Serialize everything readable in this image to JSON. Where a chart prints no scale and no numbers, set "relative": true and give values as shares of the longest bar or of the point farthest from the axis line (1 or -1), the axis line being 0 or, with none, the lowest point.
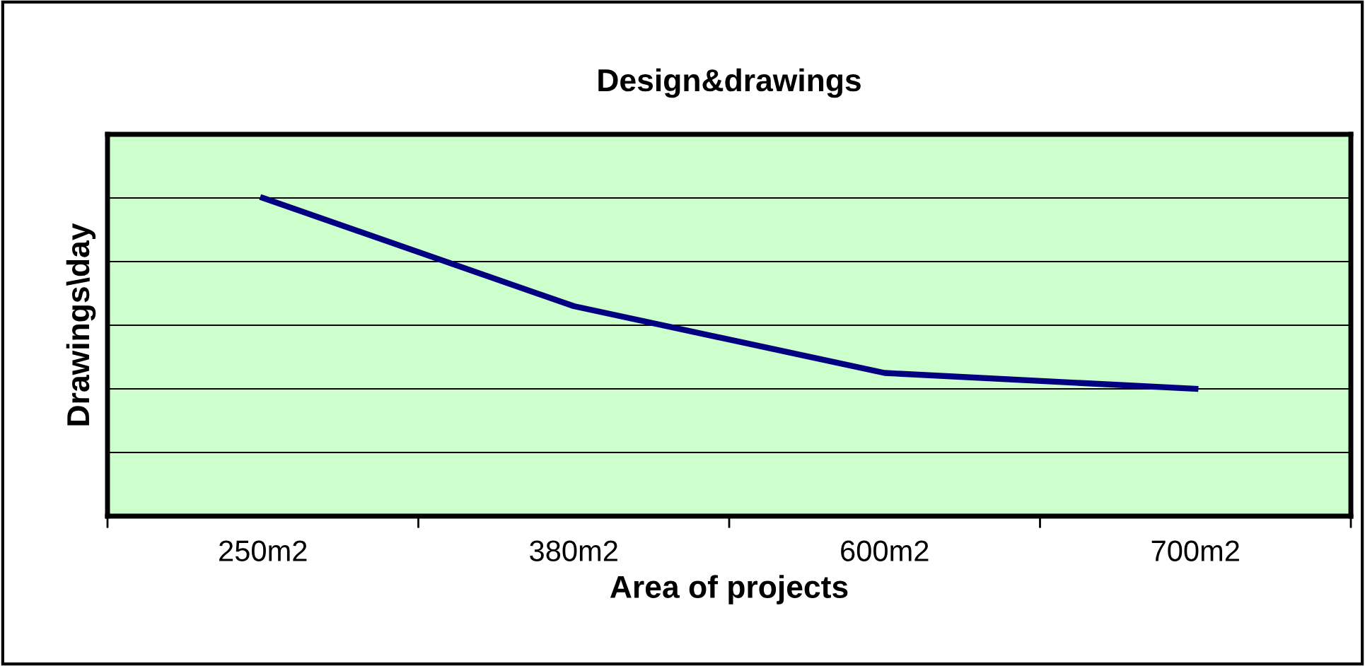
{
  "chart_data": {
    "type": "line",
    "title": "Design&drawings",
    "xlabel": "Area of projects",
    "ylabel": "Drawings\\day",
    "categories": [
      "250m2",
      "380m2",
      "600m2",
      "700m2"
    ],
    "series": [
      {
        "color": "#000080",
        "values": [
          1,
          0.66,
          0.45,
          0.4
        ]
      }
    ],
    "relative": true,
    "grid": "y",
    "tick_labels": "x",
    "legend": false,
    "marker": "none",
    "line_style": "solid"
  }
}
